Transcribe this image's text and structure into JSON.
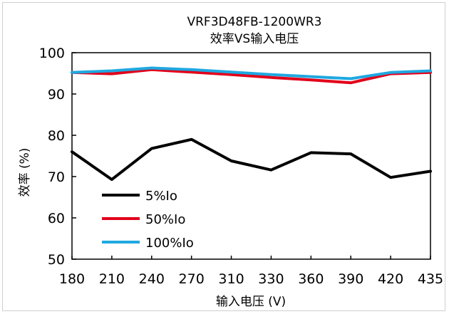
{
  "chart_data": {
    "type": "line",
    "title": "VRF3D48FB-1200WR3",
    "subtitle": "效率VS输入电压",
    "xlabel": "输入电压 (V)",
    "ylabel": "效率 (%)",
    "categories": [
      "180",
      "210",
      "240",
      "270",
      "310",
      "330",
      "360",
      "390",
      "420",
      "435"
    ],
    "ylim": [
      50,
      100
    ],
    "yticks": [
      "50",
      "60",
      "70",
      "80",
      "90",
      "100"
    ],
    "grid": false,
    "legend_position": "lower-left",
    "series": [
      {
        "name": "5%Io",
        "color": "#000000",
        "values": [
          76,
          69.3,
          76.8,
          79,
          73.8,
          71.6,
          75.8,
          75.5,
          69.8,
          71.3
        ]
      },
      {
        "name": "50%Io",
        "color": "#e2001a",
        "values": [
          95.2,
          94.9,
          95.9,
          95.3,
          94.7,
          94.0,
          93.4,
          92.7,
          94.9,
          95.2
        ]
      },
      {
        "name": "100%Io",
        "color": "#1fa8e0",
        "values": [
          95.2,
          95.6,
          96.3,
          95.9,
          95.3,
          94.7,
          94.2,
          93.7,
          95.2,
          95.6
        ]
      }
    ]
  }
}
